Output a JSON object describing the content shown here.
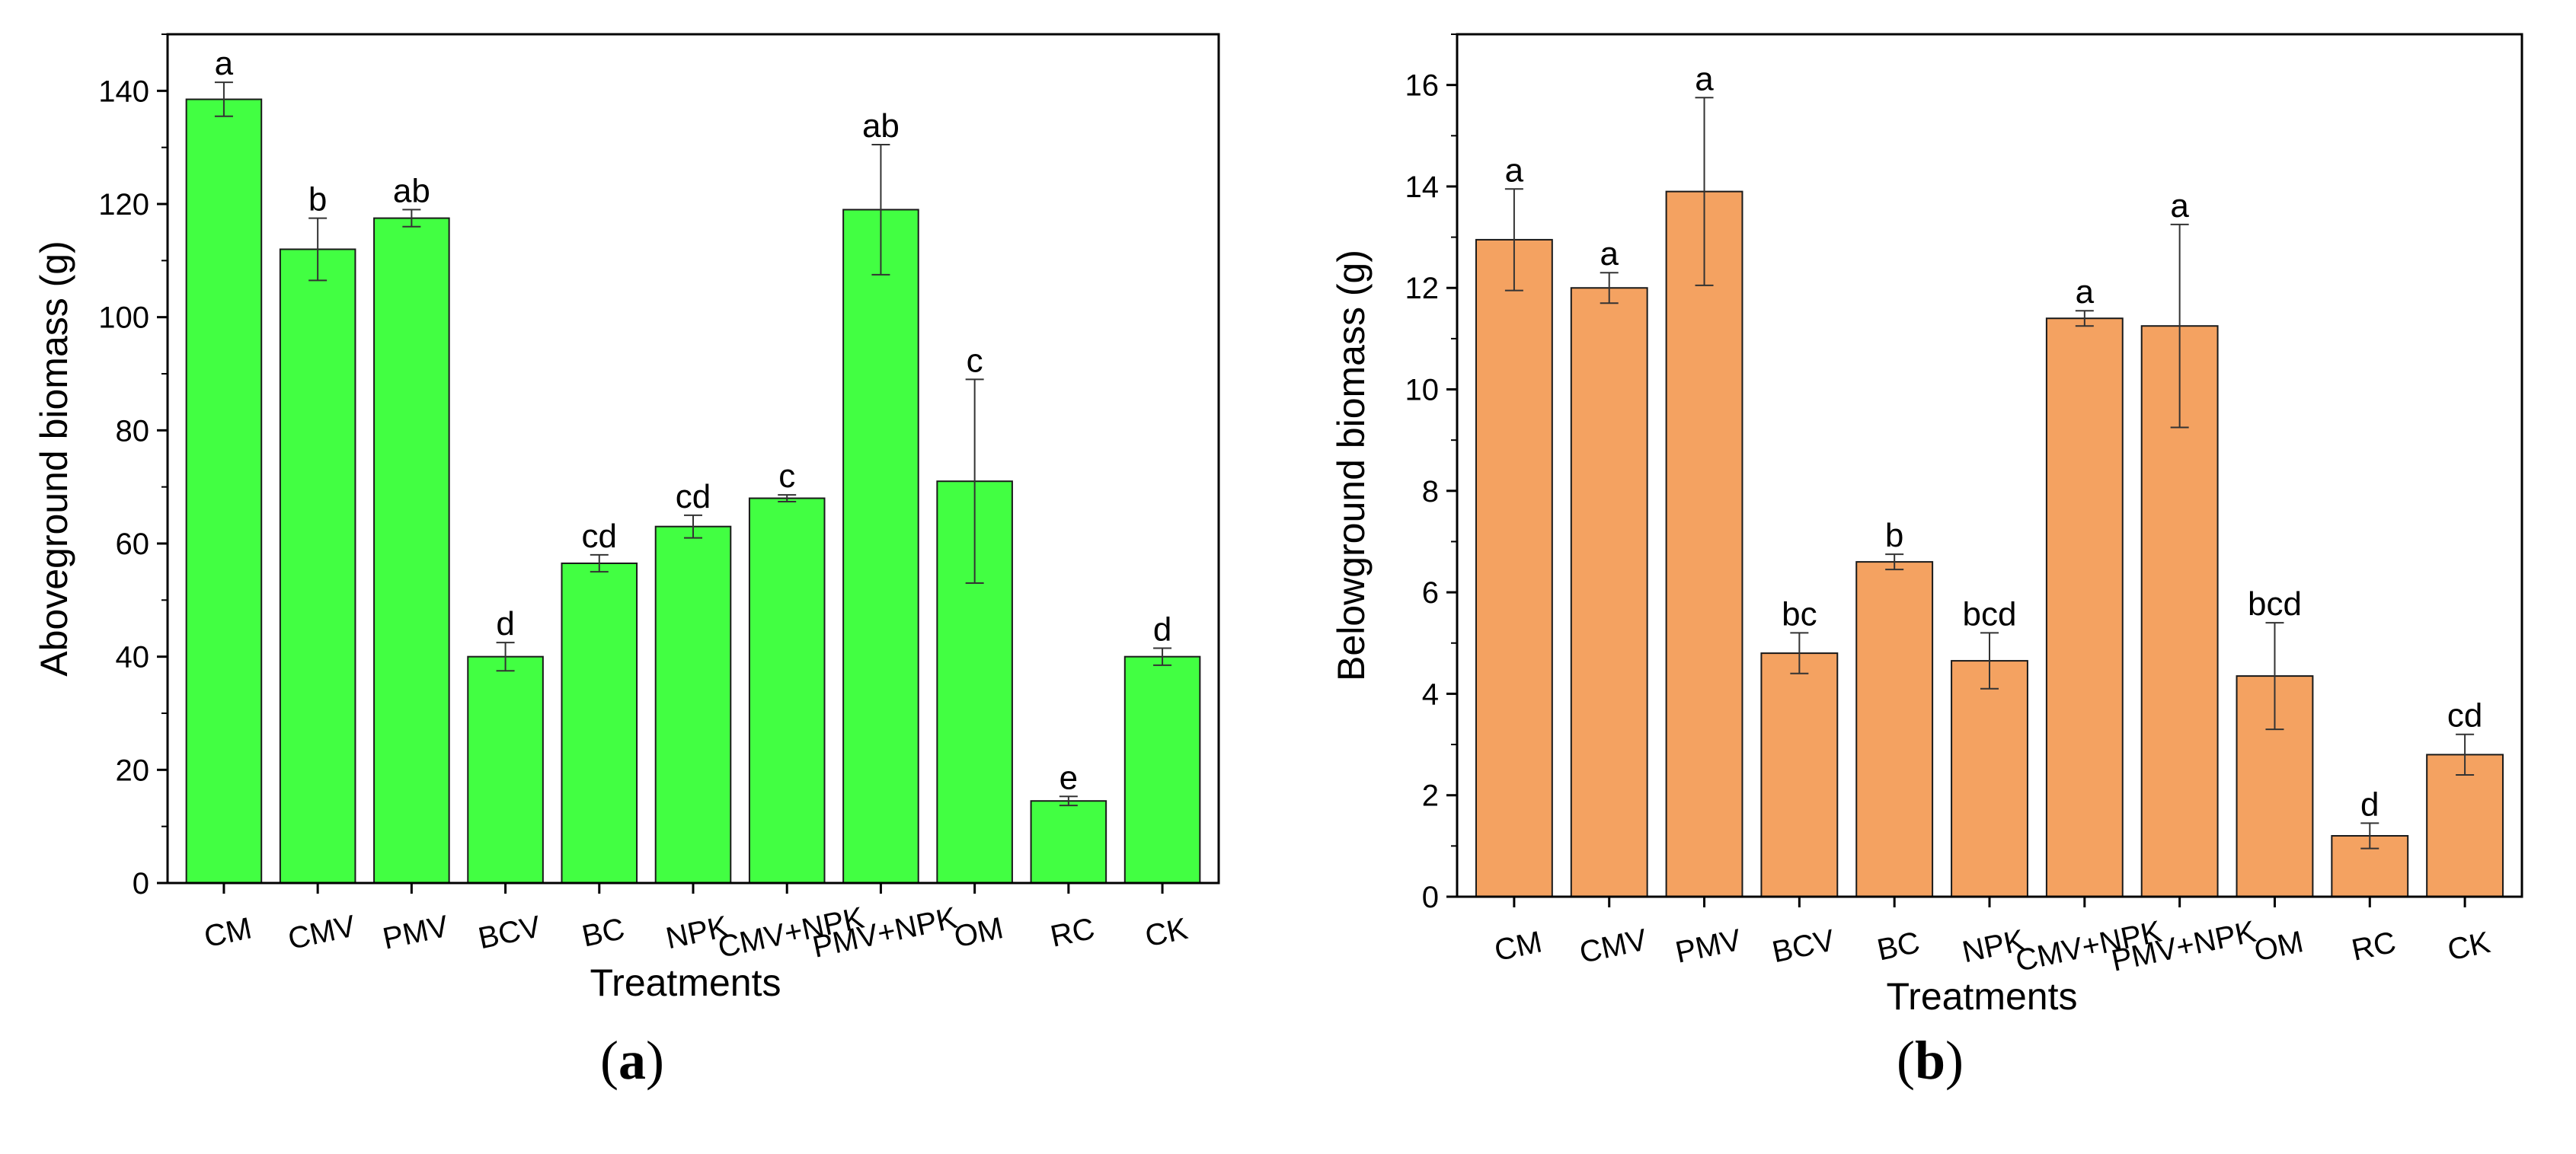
{
  "chart_data": [
    {
      "type": "bar",
      "panel_label": "a",
      "categories": [
        "CM",
        "CMV",
        "PMV",
        "BCV",
        "BC",
        "NPK",
        "CMV+NPK",
        "PMV+NPK",
        "OM",
        "RC",
        "CK"
      ],
      "values": [
        138.5,
        112,
        117.5,
        40,
        56.5,
        63,
        68,
        119,
        71,
        14.5,
        40
      ],
      "errors": [
        3,
        5.5,
        1.5,
        2.5,
        1.5,
        2,
        0.6,
        11.5,
        18,
        0.8,
        1.5
      ],
      "letters": [
        "a",
        "b",
        "ab",
        "d",
        "cd",
        "cd",
        "c",
        "ab",
        "c",
        "e",
        "d"
      ],
      "xlabel": "Treatments",
      "ylabel": "Aboveground biomass (g)",
      "ylim": [
        0,
        150
      ],
      "yticks": [
        0,
        20,
        40,
        60,
        80,
        100,
        120,
        140
      ],
      "bar_color": "#42ff42",
      "grid": false
    },
    {
      "type": "bar",
      "panel_label": "b",
      "categories": [
        "CM",
        "CMV",
        "PMV",
        "BCV",
        "BC",
        "NPK",
        "CMV+NPK",
        "PMV+NPK",
        "OM",
        "RC",
        "CK"
      ],
      "values": [
        12.95,
        12.0,
        13.9,
        4.8,
        6.6,
        4.65,
        11.4,
        11.25,
        4.35,
        1.2,
        2.8
      ],
      "errors": [
        1.0,
        0.3,
        1.85,
        0.4,
        0.15,
        0.55,
        0.15,
        2.0,
        1.05,
        0.25,
        0.4
      ],
      "letters": [
        "a",
        "a",
        "a",
        "bc",
        "b",
        "bcd",
        "a",
        "a",
        "bcd",
        "d",
        "cd"
      ],
      "xlabel": "Treatments",
      "ylabel": "Belowground biomass (g)",
      "ylim": [
        0,
        17
      ],
      "yticks": [
        0,
        2,
        4,
        6,
        8,
        10,
        12,
        14,
        16
      ],
      "bar_color": "#f4a261",
      "grid": false
    }
  ]
}
